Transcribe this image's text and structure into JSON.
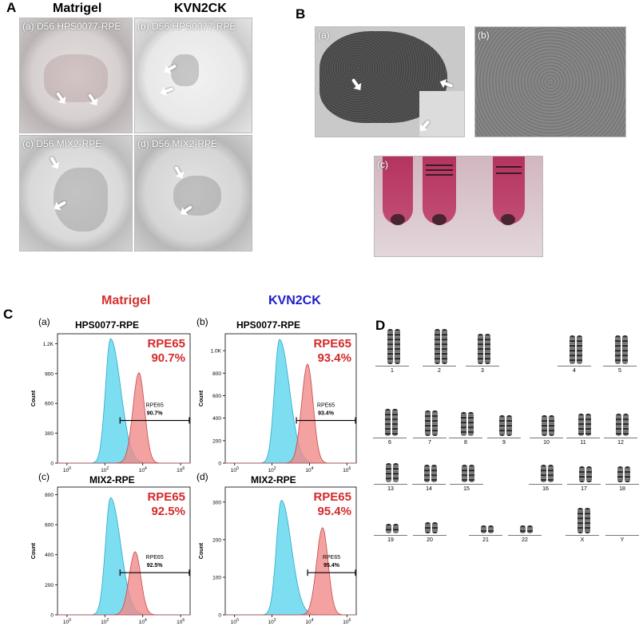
{
  "panelA": {
    "letter": "A",
    "col_matrigel": "Matrigel",
    "col_kvn2ck": "KVN2CK",
    "photos": [
      {
        "label": "(a) D56 HPS0077-RPE"
      },
      {
        "label": "(b) D56 HPS0077-RPE"
      },
      {
        "label": "(c) D56 MIX2-RPE"
      },
      {
        "label": "(d) D56 MIX2-RPE"
      }
    ]
  },
  "panelB": {
    "letter": "B",
    "photos": [
      {
        "label": "(a)"
      },
      {
        "label": "(b)"
      },
      {
        "label": "(c)"
      }
    ]
  },
  "panelC": {
    "letter": "C",
    "col_matrigel": "Matrigel",
    "col_kvn2ck": "KVN2CK",
    "colors": {
      "matrigel": "#d63030",
      "kvn2ck": "#1d1dc8",
      "cyan_fill": "#66d8ee",
      "red_fill": "#f08a8a",
      "value_text": "#d42a2a"
    }
  },
  "panelD": {
    "letter": "D",
    "labels": [
      "1",
      "2",
      "3",
      "4",
      "5",
      "6",
      "7",
      "8",
      "9",
      "10",
      "11",
      "12",
      "13",
      "14",
      "15",
      "16",
      "17",
      "18",
      "19",
      "20",
      "21",
      "22",
      "X",
      "Y"
    ]
  },
  "chart_data": [
    {
      "type": "area",
      "panel": "(a)",
      "title": "HPS0077-RPE",
      "ylabel": "Count",
      "x_scale": "log",
      "x_ticks": [
        "10^0",
        "10^2",
        "10^4",
        "10^6"
      ],
      "y_ticks": [
        "0",
        "300",
        "600",
        "900",
        "1.2K"
      ],
      "ylim": [
        0,
        1300
      ],
      "gate_label": "RPE65",
      "gate_value": "90.7%",
      "big_label": "RPE65",
      "big_value": "90.7%",
      "gate_x": [
        2.8,
        6.5
      ],
      "series": [
        {
          "color": "cyan",
          "peak_x": 2.3,
          "peak_y": 1250
        },
        {
          "color": "red",
          "peak_x": 3.8,
          "peak_y": 910
        }
      ]
    },
    {
      "type": "area",
      "panel": "(b)",
      "title": "HPS0077-RPE",
      "ylabel": "Count",
      "x_scale": "log",
      "x_ticks": [
        "10^0",
        "10^2",
        "10^4",
        "10^6"
      ],
      "y_ticks": [
        "0",
        "200",
        "400",
        "600",
        "800",
        "1.0K"
      ],
      "ylim": [
        0,
        1150
      ],
      "gate_label": "RPE65",
      "gate_value": "93.4%",
      "big_label": "RPE65",
      "big_value": "93.4%",
      "gate_x": [
        3.3,
        6.5
      ],
      "series": [
        {
          "color": "cyan",
          "peak_x": 2.4,
          "peak_y": 1100
        },
        {
          "color": "red",
          "peak_x": 3.9,
          "peak_y": 880
        }
      ]
    },
    {
      "type": "area",
      "panel": "(c)",
      "title": "MIX2-RPE",
      "ylabel": "Count",
      "x_scale": "log",
      "x_ticks": [
        "10^0",
        "10^2",
        "10^4",
        "10^6"
      ],
      "y_ticks": [
        "0",
        "200",
        "400",
        "600",
        "800"
      ],
      "ylim": [
        0,
        850
      ],
      "gate_label": "RPE65",
      "gate_value": "92.5%",
      "big_label": "RPE65",
      "big_value": "92.5%",
      "gate_x": [
        2.8,
        6.5
      ],
      "series": [
        {
          "color": "cyan",
          "peak_x": 2.3,
          "peak_y": 780
        },
        {
          "color": "red",
          "peak_x": 3.6,
          "peak_y": 420
        }
      ]
    },
    {
      "type": "area",
      "panel": "(d)",
      "title": "MIX2-RPE",
      "ylabel": "Count",
      "x_scale": "log",
      "x_ticks": [
        "10^0",
        "10^2",
        "10^4",
        "10^6"
      ],
      "y_ticks": [
        "0",
        "100",
        "200",
        "300"
      ],
      "ylim": [
        0,
        340
      ],
      "gate_label": "RPE65",
      "gate_value": "95.4%",
      "big_label": "RPE65",
      "big_value": "95.4%",
      "gate_x": [
        3.9,
        6.5
      ],
      "series": [
        {
          "color": "cyan",
          "peak_x": 2.5,
          "peak_y": 305
        },
        {
          "color": "red",
          "peak_x": 4.7,
          "peak_y": 232
        }
      ]
    }
  ]
}
